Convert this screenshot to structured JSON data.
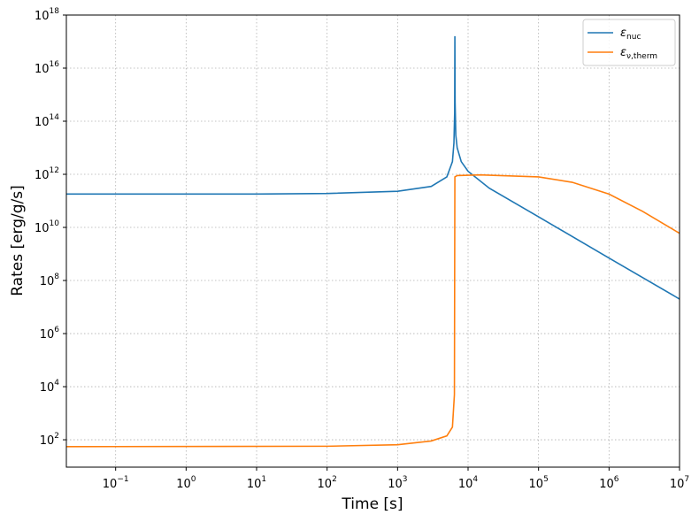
{
  "chart_data": {
    "type": "line",
    "xlabel": "Time [s]",
    "ylabel": "Rates [erg/g/s]",
    "xscale": "log",
    "yscale": "log",
    "grid": true,
    "legend": "upper right",
    "xlim": [
      0.02,
      10000000
    ],
    "ylim": [
      9.3,
      1e+18
    ],
    "xticks": [
      {
        "value": 0.1,
        "label": "10",
        "power": "−1"
      },
      {
        "value": 1,
        "label": "10",
        "power": "0"
      },
      {
        "value": 10,
        "label": "10",
        "power": "1"
      },
      {
        "value": 100,
        "label": "10",
        "power": "2"
      },
      {
        "value": 1000,
        "label": "10",
        "power": "3"
      },
      {
        "value": 10000,
        "label": "10",
        "power": "4"
      },
      {
        "value": 100000,
        "label": "10",
        "power": "5"
      },
      {
        "value": 1000000,
        "label": "10",
        "power": "6"
      },
      {
        "value": 10000000,
        "label": "10",
        "power": "7"
      }
    ],
    "yticks": [
      {
        "value": 100,
        "label": "10",
        "power": "2"
      },
      {
        "value": 10000,
        "label": "10",
        "power": "4"
      },
      {
        "value": 1000000,
        "label": "10",
        "power": "6"
      },
      {
        "value": 100000000,
        "label": "10",
        "power": "8"
      },
      {
        "value": 10000000000,
        "label": "10",
        "power": "10"
      },
      {
        "value": 1000000000000,
        "label": "10",
        "power": "12"
      },
      {
        "value": 100000000000000,
        "label": "10",
        "power": "14"
      },
      {
        "value": 10000000000000000,
        "label": "10",
        "power": "16"
      },
      {
        "value": 1e+18,
        "label": "10",
        "power": "18"
      }
    ],
    "series": [
      {
        "name": "ε_nuc",
        "color": "#1f77b4",
        "x": [
          0.02,
          1,
          10,
          100,
          1000,
          3000,
          5000,
          6000,
          6300,
          6450,
          6500,
          6550,
          6700,
          7000,
          8000,
          10000,
          20000,
          100000,
          1000000,
          10000000
        ],
        "values": [
          180000000000.0,
          180000000000.0,
          180000000000.0,
          190000000000.0,
          230000000000.0,
          350000000000.0,
          800000000000.0,
          3000000000000.0,
          15000000000000.0,
          200000000000000.0,
          1.6e+17,
          500000000000000.0,
          30000000000000.0,
          10000000000000.0,
          3000000000000.0,
          1300000000000.0,
          300000000000.0,
          25000000000.0,
          700000000.0,
          20000000.0
        ]
      },
      {
        "name": "ε_ν,therm",
        "color": "#ff7f0e",
        "x": [
          0.02,
          100,
          1000,
          3000,
          5000,
          6000,
          6400,
          6450,
          6500,
          7000,
          15000,
          100000,
          300000,
          1000000,
          3000000,
          10000000
        ],
        "values": [
          55,
          57,
          65,
          90,
          140,
          300,
          5000,
          100000000,
          800000000000,
          900000000000,
          950000000000,
          800000000000,
          500000000000,
          180000000000,
          40000000000,
          6000000000
        ]
      }
    ]
  }
}
